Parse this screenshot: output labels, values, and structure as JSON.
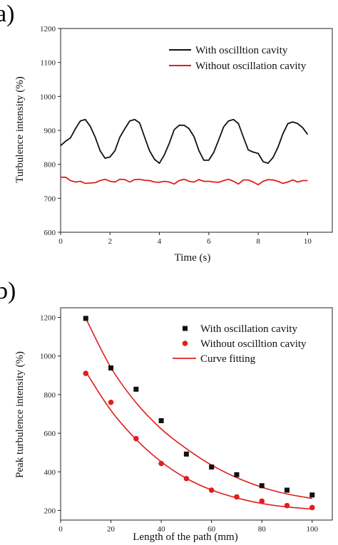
{
  "colors": {
    "series_black": "#111111",
    "series_red": "#e01e1e",
    "axis": "#222222"
  },
  "chart_data": [
    {
      "panel_label": "a)",
      "type": "line",
      "xlabel": "Time (s)",
      "ylabel": "Turbulence intensity (%)",
      "xlim": [
        0,
        11
      ],
      "ylim": [
        600,
        1200
      ],
      "xticks": [
        0,
        2,
        4,
        6,
        8,
        10
      ],
      "yticks": [
        600,
        700,
        800,
        900,
        1000,
        1100,
        1200
      ],
      "grid": false,
      "legend_position": "top-right",
      "series": [
        {
          "name": "With oscilltion cavity",
          "color": "#111111",
          "points": [
            [
              0.0,
              855
            ],
            [
              0.2,
              868
            ],
            [
              0.4,
              878
            ],
            [
              0.6,
              905
            ],
            [
              0.8,
              928
            ],
            [
              1.0,
              932
            ],
            [
              1.2,
              912
            ],
            [
              1.4,
              880
            ],
            [
              1.6,
              840
            ],
            [
              1.8,
              818
            ],
            [
              2.0,
              822
            ],
            [
              2.2,
              840
            ],
            [
              2.4,
              880
            ],
            [
              2.6,
              905
            ],
            [
              2.8,
              928
            ],
            [
              3.0,
              932
            ],
            [
              3.2,
              922
            ],
            [
              3.4,
              880
            ],
            [
              3.6,
              840
            ],
            [
              3.8,
              815
            ],
            [
              4.0,
              803
            ],
            [
              4.2,
              828
            ],
            [
              4.4,
              862
            ],
            [
              4.6,
              902
            ],
            [
              4.8,
              915
            ],
            [
              5.0,
              915
            ],
            [
              5.2,
              905
            ],
            [
              5.4,
              882
            ],
            [
              5.6,
              840
            ],
            [
              5.8,
              812
            ],
            [
              6.0,
              812
            ],
            [
              6.2,
              835
            ],
            [
              6.4,
              872
            ],
            [
              6.6,
              910
            ],
            [
              6.8,
              928
            ],
            [
              7.0,
              932
            ],
            [
              7.2,
              920
            ],
            [
              7.4,
              880
            ],
            [
              7.6,
              842
            ],
            [
              7.8,
              836
            ],
            [
              8.0,
              832
            ],
            [
              8.2,
              808
            ],
            [
              8.4,
              803
            ],
            [
              8.6,
              820
            ],
            [
              8.8,
              850
            ],
            [
              9.0,
              890
            ],
            [
              9.2,
              920
            ],
            [
              9.4,
              925
            ],
            [
              9.6,
              920
            ],
            [
              9.8,
              908
            ],
            [
              10.0,
              888
            ]
          ]
        },
        {
          "name": "Without oscillation cavity",
          "color": "#e01e1e",
          "points": [
            [
              0.0,
              762
            ],
            [
              0.2,
              762
            ],
            [
              0.4,
              752
            ],
            [
              0.6,
              748
            ],
            [
              0.8,
              750
            ],
            [
              1.0,
              744
            ],
            [
              1.2,
              745
            ],
            [
              1.4,
              746
            ],
            [
              1.6,
              752
            ],
            [
              1.8,
              756
            ],
            [
              2.0,
              750
            ],
            [
              2.2,
              748
            ],
            [
              2.4,
              756
            ],
            [
              2.6,
              755
            ],
            [
              2.8,
              748
            ],
            [
              3.0,
              755
            ],
            [
              3.2,
              756
            ],
            [
              3.4,
              753
            ],
            [
              3.6,
              752
            ],
            [
              3.8,
              748
            ],
            [
              4.0,
              747
            ],
            [
              4.2,
              750
            ],
            [
              4.4,
              748
            ],
            [
              4.6,
              742
            ],
            [
              4.8,
              752
            ],
            [
              5.0,
              756
            ],
            [
              5.2,
              750
            ],
            [
              5.4,
              748
            ],
            [
              5.6,
              755
            ],
            [
              5.8,
              750
            ],
            [
              6.0,
              750
            ],
            [
              6.2,
              748
            ],
            [
              6.4,
              747
            ],
            [
              6.6,
              752
            ],
            [
              6.8,
              756
            ],
            [
              7.0,
              750
            ],
            [
              7.2,
              742
            ],
            [
              7.4,
              754
            ],
            [
              7.6,
              754
            ],
            [
              7.8,
              748
            ],
            [
              8.0,
              740
            ],
            [
              8.2,
              750
            ],
            [
              8.4,
              755
            ],
            [
              8.6,
              754
            ],
            [
              8.8,
              750
            ],
            [
              9.0,
              744
            ],
            [
              9.2,
              748
            ],
            [
              9.4,
              754
            ],
            [
              9.6,
              748
            ],
            [
              9.8,
              752
            ],
            [
              10.0,
              752
            ]
          ]
        }
      ]
    },
    {
      "panel_label": "b)",
      "type": "scatter",
      "xlabel": "Length of the path (mm)",
      "ylabel": "Peak turbulence intensity (%)",
      "xlim": [
        0,
        108
      ],
      "ylim": [
        150,
        1250
      ],
      "xticks": [
        0,
        20,
        40,
        60,
        80,
        100
      ],
      "yticks": [
        200,
        400,
        600,
        800,
        1000,
        1200
      ],
      "grid": false,
      "legend_position": "top-right",
      "series": [
        {
          "name": "With oscillation cavity",
          "marker": "square",
          "color": "#111111",
          "x": [
            10,
            20,
            30,
            40,
            50,
            60,
            70,
            80,
            90,
            100
          ],
          "y": [
            1195,
            938,
            828,
            665,
            492,
            425,
            385,
            328,
            305,
            280
          ]
        },
        {
          "name": "Without oscilltion cavity",
          "marker": "circle",
          "color": "#e01e1e",
          "x": [
            10,
            20,
            30,
            40,
            50,
            60,
            70,
            80,
            90,
            100
          ],
          "y": [
            910,
            760,
            572,
            443,
            365,
            305,
            270,
            248,
            225,
            215
          ]
        },
        {
          "name": "Curve fitting",
          "marker": "line",
          "color": "#e01e1e",
          "fits": [
            {
              "x": [
                10,
                20,
                30,
                40,
                50,
                60,
                70,
                80,
                90,
                100
              ],
              "y": [
                1195,
                940,
                758,
                622,
                520,
                435,
                370,
                320,
                285,
                262
              ]
            },
            {
              "x": [
                10,
                20,
                30,
                40,
                50,
                60,
                70,
                80,
                90,
                100
              ],
              "y": [
                918,
                718,
                568,
                452,
                366,
                306,
                265,
                236,
                218,
                207
              ]
            }
          ]
        }
      ]
    }
  ]
}
